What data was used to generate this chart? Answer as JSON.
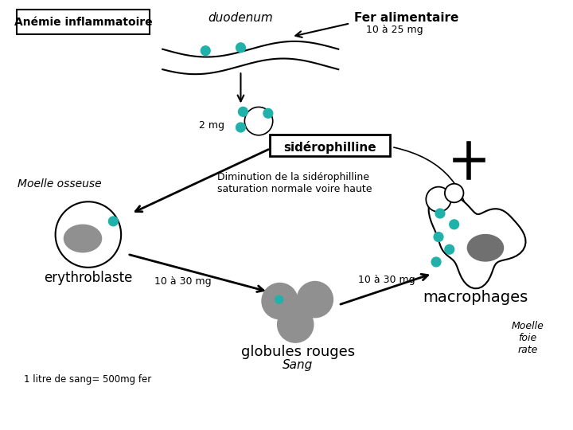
{
  "labels": {
    "anemie": "Anémie inflammatoire",
    "duodenum": "duodenum",
    "fer_alimentaire": "Fer alimentaire",
    "fer_dose": "10 à 25 mg",
    "deux_mg": "2 mg",
    "siderophilline": "sidérophilline",
    "moelle_osseuse": "Moelle osseuse",
    "diminution": "Diminution de la sidérophilline\nsaturation normale voire haute",
    "erythroblaste": "erythroblaste",
    "dose1": "10 à 30 mg",
    "dose2": "10 à 30 mg",
    "globules": "globules rouges",
    "sang": "Sang",
    "macrophages": "macrophages",
    "moelle_foie": "Moelle\nfoie\nrate",
    "litre_sang": "1 litre de sang= 500mg fer"
  },
  "teal": "#20b2aa",
  "gray": "#909090",
  "dark_gray": "#707070"
}
